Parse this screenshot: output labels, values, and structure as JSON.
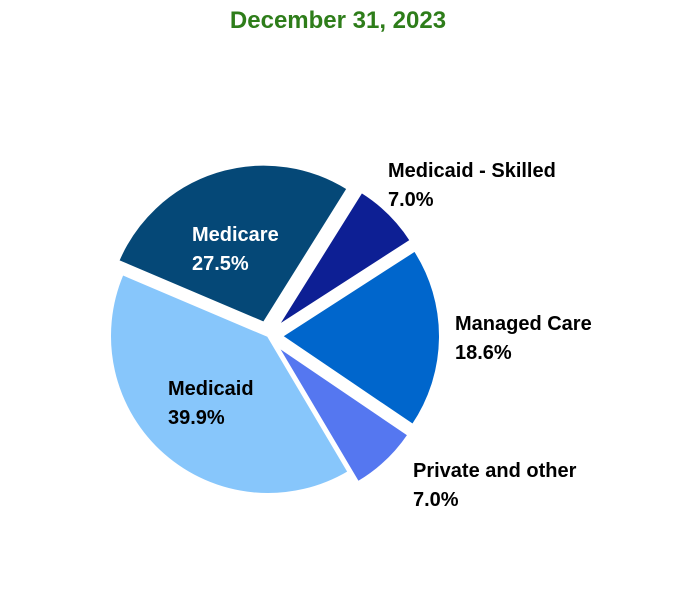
{
  "chart_data": {
    "type": "pie",
    "title": "December 31, 2023",
    "title_color": "#2e7d1a",
    "exploded": true,
    "slices": [
      {
        "name": "Medicaid - Skilled",
        "value": 7.0,
        "value_label": "7.0%",
        "color": "#0d1f94",
        "label_color": "#000000",
        "label_position": "outside"
      },
      {
        "name": "Managed Care",
        "value": 18.6,
        "value_label": "18.6%",
        "color": "#0066cc",
        "label_color": "#000000",
        "label_position": "outside"
      },
      {
        "name": "Private and other",
        "value": 7.0,
        "value_label": "7.0%",
        "color": "#5577f0",
        "label_color": "#000000",
        "label_position": "outside"
      },
      {
        "name": "Medicaid",
        "value": 39.9,
        "value_label": "39.9%",
        "color": "#87c6fb",
        "label_color": "#000000",
        "label_position": "inside"
      },
      {
        "name": "Medicare",
        "value": 27.5,
        "value_label": "27.5%",
        "color": "#054877",
        "label_color": "#ffffff",
        "label_position": "inside"
      }
    ]
  }
}
